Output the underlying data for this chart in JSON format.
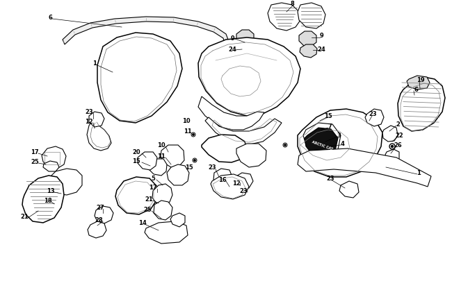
{
  "background_color": "#ffffff",
  "line_color": "#000000",
  "label_color": "#000000",
  "fig_width": 6.5,
  "fig_height": 4.06,
  "dpi": 100
}
